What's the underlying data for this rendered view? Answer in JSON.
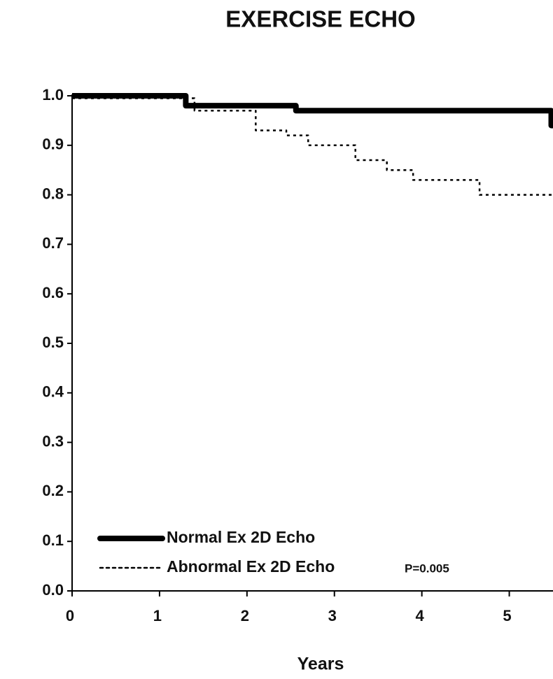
{
  "chart_data": {
    "type": "step",
    "title": "EXERCISE  ECHO",
    "xlabel": "Years",
    "xlim": [
      0,
      5.5
    ],
    "ylim": [
      0,
      1
    ],
    "xticks": [
      0,
      1,
      2,
      3,
      4,
      5
    ],
    "yticks": [
      {
        "value": 0,
        "label": "0.0"
      },
      0.1,
      0.2,
      0.3,
      0.4,
      0.5,
      0.6,
      0.7,
      0.8,
      0.9,
      {
        "value": 1,
        "label": "1.0"
      }
    ],
    "series": [
      {
        "name": "Normal Ex 2D Echo",
        "color": "#000000",
        "line_style": "solid",
        "x": [
          0,
          1.3,
          2.56,
          5.48
        ],
        "values": [
          1.0,
          0.98,
          0.97,
          0.94
        ]
      },
      {
        "name": "Abnormal Ex 2D Echo",
        "color": "#000000",
        "line_style": "dotted",
        "x": [
          0,
          1.4,
          2.1,
          2.45,
          2.7,
          3.24,
          3.6,
          3.9,
          4.66
        ],
        "values": [
          0.995,
          0.97,
          0.93,
          0.92,
          0.9,
          0.87,
          0.85,
          0.83,
          0.8
        ]
      }
    ],
    "annotation": "P=0.005"
  }
}
